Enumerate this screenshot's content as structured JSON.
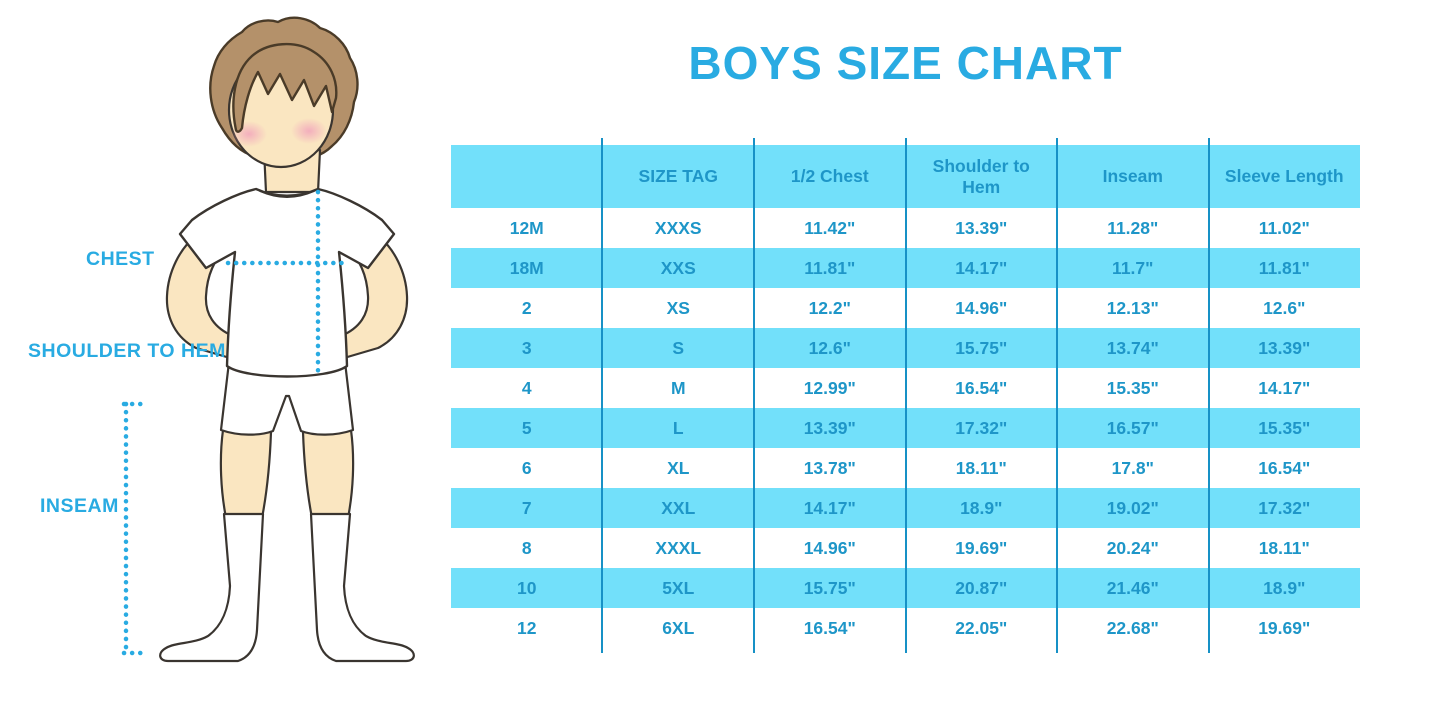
{
  "title": "BOYS SIZE CHART",
  "figure": {
    "labels": {
      "chest": "CHEST",
      "shoulder_to_hem": "SHOULDER TO HEM",
      "inseam": "INSEAM"
    }
  },
  "chart_data": {
    "type": "table",
    "title": "BOYS SIZE CHART",
    "columns": [
      "",
      "SIZE TAG",
      "1/2 Chest",
      "Shoulder to Hem",
      "Inseam",
      "Sleeve Length"
    ],
    "rows": [
      [
        "12M",
        "XXXS",
        "11.42\"",
        "13.39\"",
        "11.28\"",
        "11.02\""
      ],
      [
        "18M",
        "XXS",
        "11.81\"",
        "14.17\"",
        "11.7\"",
        "11.81\""
      ],
      [
        "2",
        "XS",
        "12.2\"",
        "14.96\"",
        "12.13\"",
        "12.6\""
      ],
      [
        "3",
        "S",
        "12.6\"",
        "15.75\"",
        "13.74\"",
        "13.39\""
      ],
      [
        "4",
        "M",
        "12.99\"",
        "16.54\"",
        "15.35\"",
        "14.17\""
      ],
      [
        "5",
        "L",
        "13.39\"",
        "17.32\"",
        "16.57\"",
        "15.35\""
      ],
      [
        "6",
        "XL",
        "13.78\"",
        "18.11\"",
        "17.8\"",
        "16.54\""
      ],
      [
        "7",
        "XXL",
        "14.17\"",
        "18.9\"",
        "19.02\"",
        "17.32\""
      ],
      [
        "8",
        "XXXL",
        "14.96\"",
        "19.69\"",
        "20.24\"",
        "18.11\""
      ],
      [
        "10",
        "5XL",
        "15.75\"",
        "20.87\"",
        "21.46\"",
        "18.9\""
      ],
      [
        "12",
        "6XL",
        "16.54\"",
        "22.05\"",
        "22.68\"",
        "19.69\""
      ]
    ],
    "layout": {
      "striped": true,
      "stripe_pattern": "header blue, then rows alternate white/blue starting white",
      "column_dividers": true,
      "grid": "vertical only"
    }
  },
  "colors": {
    "title_blue": "#29ABE2",
    "row_stripe_blue": "#72E0FA",
    "table_text_blue": "#1E96C8",
    "column_divider_blue": "#1791C6",
    "dotted_line_blue": "#29ABE2",
    "skin": "#FAE6C1",
    "hair": "#B4916A",
    "blush": "#F2A8BC",
    "outline": "#3A3530",
    "background": "#FFFFFF"
  }
}
